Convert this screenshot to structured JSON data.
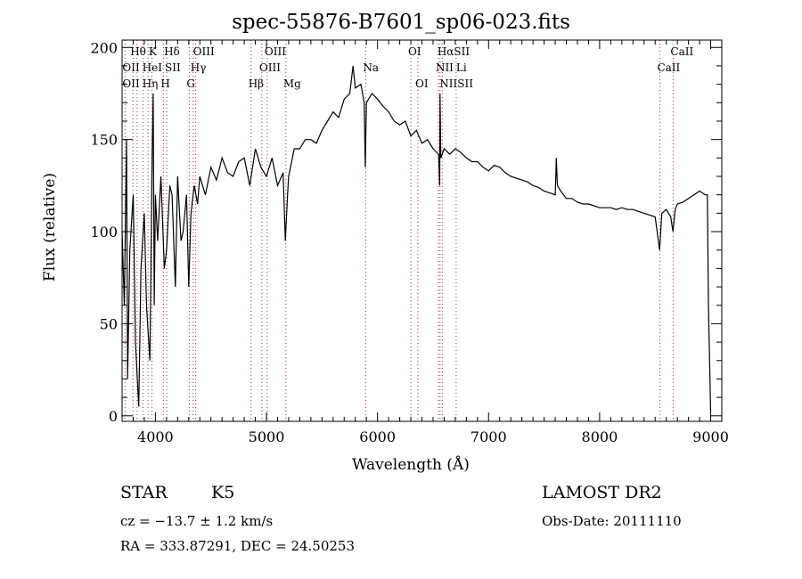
{
  "chart_data": {
    "type": "line",
    "title": "spec-55876-B7601_sp06-023.fits",
    "xlabel": "Wavelength (Å)",
    "ylabel": "Flux (relative)",
    "xlim": [
      3700,
      9100
    ],
    "ylim": [
      -3,
      204
    ],
    "xticks": [
      4000,
      5000,
      6000,
      7000,
      8000,
      9000
    ],
    "yticks": [
      0,
      50,
      100,
      150,
      200
    ],
    "grid": false,
    "series": [
      {
        "name": "spectrum",
        "x": [
          3700,
          3720,
          3740,
          3750,
          3770,
          3800,
          3820,
          3850,
          3870,
          3900,
          3920,
          3950,
          3970,
          3980,
          3990,
          4000,
          4020,
          4050,
          4080,
          4100,
          4130,
          4150,
          4180,
          4200,
          4230,
          4250,
          4280,
          4300,
          4320,
          4350,
          4380,
          4400,
          4450,
          4500,
          4550,
          4600,
          4650,
          4700,
          4750,
          4800,
          4850,
          4900,
          4950,
          5000,
          5050,
          5100,
          5150,
          5170,
          5190,
          5200,
          5250,
          5300,
          5350,
          5400,
          5450,
          5500,
          5550,
          5600,
          5650,
          5700,
          5750,
          5780,
          5800,
          5850,
          5880,
          5890,
          5900,
          5950,
          6000,
          6050,
          6100,
          6150,
          6200,
          6250,
          6300,
          6350,
          6400,
          6450,
          6500,
          6550,
          6560,
          6563,
          6570,
          6600,
          6650,
          6700,
          6750,
          6800,
          6850,
          6900,
          6950,
          7000,
          7050,
          7100,
          7150,
          7200,
          7250,
          7300,
          7350,
          7400,
          7450,
          7500,
          7550,
          7600,
          7610,
          7620,
          7650,
          7700,
          7750,
          7800,
          7850,
          7900,
          7950,
          8000,
          8050,
          8100,
          8150,
          8200,
          8250,
          8300,
          8350,
          8400,
          8450,
          8500,
          8540,
          8560,
          8600,
          8640,
          8660,
          8680,
          8700,
          8750,
          8800,
          8850,
          8900,
          8950,
          8970,
          8980,
          9000
        ],
        "y": [
          100,
          60,
          150,
          20,
          90,
          120,
          40,
          5,
          80,
          110,
          60,
          30,
          140,
          175,
          60,
          120,
          95,
          130,
          80,
          90,
          125,
          120,
          70,
          130,
          95,
          100,
          120,
          70,
          110,
          125,
          115,
          130,
          120,
          135,
          128,
          140,
          132,
          130,
          138,
          140,
          125,
          145,
          135,
          130,
          140,
          125,
          132,
          95,
          120,
          130,
          145,
          145,
          150,
          150,
          148,
          155,
          160,
          165,
          162,
          172,
          175,
          190,
          178,
          180,
          170,
          135,
          170,
          175,
          172,
          168,
          165,
          160,
          158,
          160,
          152,
          155,
          148,
          150,
          145,
          142,
          125,
          175,
          140,
          145,
          142,
          145,
          143,
          140,
          138,
          138,
          135,
          133,
          136,
          135,
          132,
          130,
          129,
          128,
          127,
          125,
          124,
          122,
          121,
          120,
          140,
          125,
          122,
          118,
          118,
          116,
          115,
          115,
          114,
          113,
          113,
          113,
          112,
          113,
          112,
          112,
          111,
          110,
          109,
          108,
          90,
          110,
          112,
          108,
          100,
          112,
          115,
          116,
          118,
          120,
          122,
          120,
          120,
          60,
          2
        ]
      }
    ],
    "lines": [
      {
        "label": "Hθ",
        "wl": 3798,
        "row": 0
      },
      {
        "label": "K",
        "wl": 3934,
        "row": 0
      },
      {
        "label": "Hδ",
        "wl": 4102,
        "row": 0
      },
      {
        "label": "OIII",
        "wl": 4363,
        "row": 0
      },
      {
        "label": "OIII",
        "wl": 5007,
        "row": 0
      },
      {
        "label": "OI",
        "wl": 6300,
        "row": 0
      },
      {
        "label": "HαSII",
        "wl": 6563,
        "row": 0
      },
      {
        "label": "CaII",
        "wl": 8662,
        "row": 0
      },
      {
        "label": "OII",
        "wl": 3727,
        "row": 1
      },
      {
        "label": "HeI",
        "wl": 3889,
        "row": 1
      },
      {
        "label": "SII",
        "wl": 4072,
        "row": 1
      },
      {
        "label": "Hγ",
        "wl": 4340,
        "row": 1
      },
      {
        "label": "OIII",
        "wl": 4959,
        "row": 1
      },
      {
        "label": "Na",
        "wl": 5893,
        "row": 1
      },
      {
        "label": "NII",
        "wl": 6548,
        "row": 1
      },
      {
        "label": "Li",
        "wl": 6708,
        "row": 1
      },
      {
        "label": "CaII",
        "wl": 8542,
        "row": 1
      },
      {
        "label": "OII",
        "wl": 3727,
        "row": 2
      },
      {
        "label": "Hη",
        "wl": 3835,
        "row": 2
      },
      {
        "label": "H",
        "wl": 3969,
        "row": 2
      },
      {
        "label": "G",
        "wl": 4305,
        "row": 2
      },
      {
        "label": "Hβ",
        "wl": 4861,
        "row": 2
      },
      {
        "label": "Mg",
        "wl": 5175,
        "row": 2
      },
      {
        "label": "OI",
        "wl": 6364,
        "row": 2
      },
      {
        "label": "NIISII",
        "wl": 6583,
        "row": 2
      }
    ],
    "line_color": "#b03030"
  },
  "info": {
    "object": "STAR",
    "subclass": "K5",
    "cz": "cz = −13.7 ± 1.2 km/s",
    "coords": "RA = 333.87291, DEC =  24.50253",
    "survey": "LAMOST DR2",
    "obs_date": "Obs-Date: 20111110"
  }
}
